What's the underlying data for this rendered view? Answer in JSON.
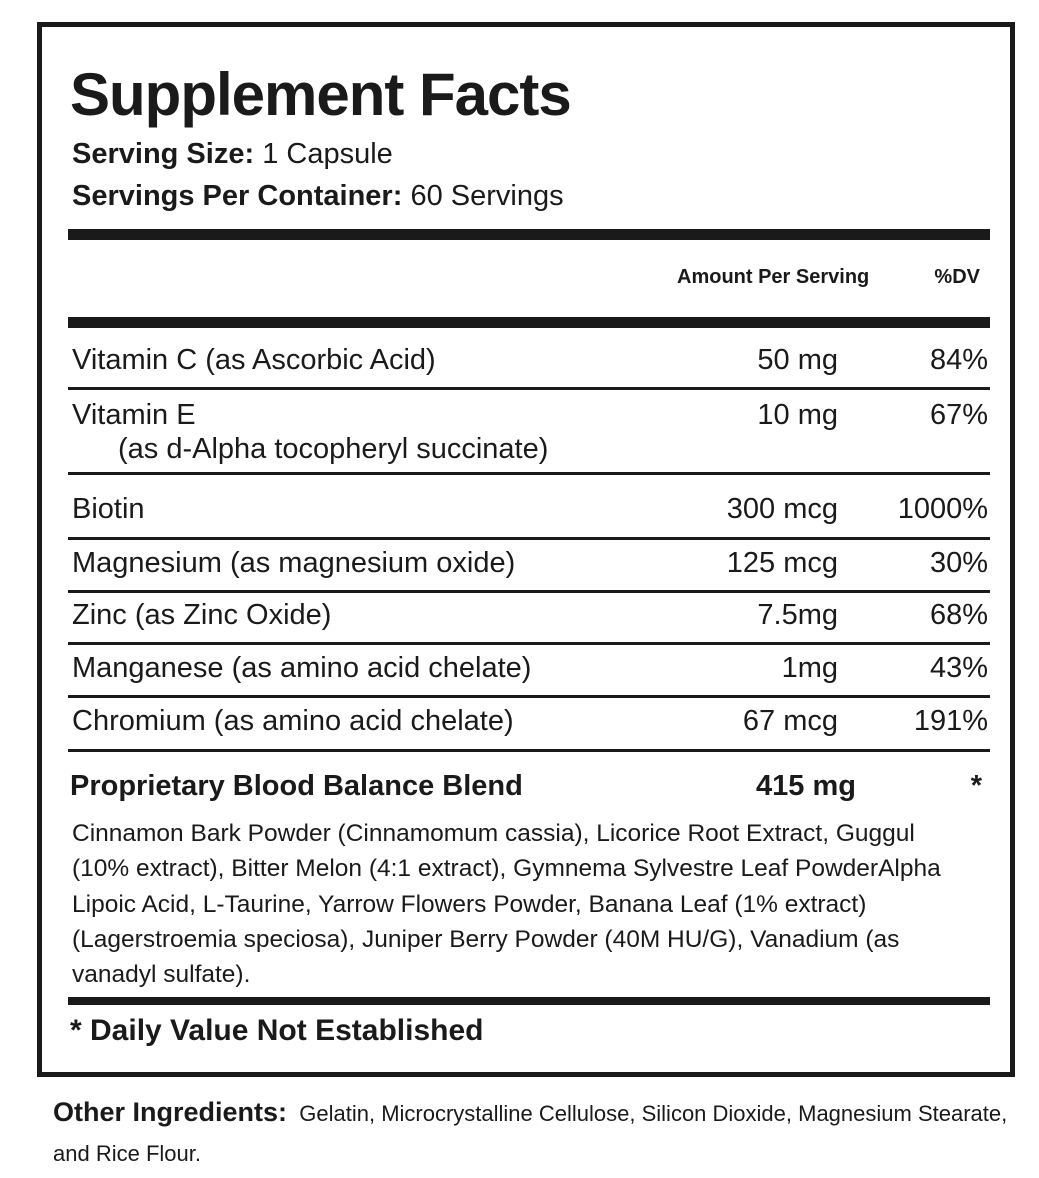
{
  "title": "Supplement Facts",
  "serving_size": {
    "label": "Serving Size:",
    "value": "1 Capsule"
  },
  "servings_per_container": {
    "label": "Servings Per Container:",
    "value": "60 Servings"
  },
  "columns": {
    "amount": "Amount Per Serving",
    "dv": "%DV"
  },
  "rows": [
    {
      "name": "Vitamin C (as Ascorbic Acid)",
      "amount": "50 mg",
      "dv": "84%"
    },
    {
      "name": "Vitamin E",
      "sub": "(as d-Alpha tocopheryl succinate)",
      "amount": "10 mg",
      "dv": "67%"
    },
    {
      "name": "Biotin",
      "amount": "300 mcg",
      "dv": "1000%"
    },
    {
      "name": "Magnesium (as magnesium oxide)",
      "amount": "125 mcg",
      "dv": "30%"
    },
    {
      "name": "Zinc (as Zinc Oxide)",
      "amount": "7.5mg",
      "dv": "68%"
    },
    {
      "name": "Manganese (as amino acid chelate)",
      "amount": "1mg",
      "dv": "43%"
    },
    {
      "name": "Chromium (as amino acid chelate)",
      "amount": "67 mcg",
      "dv": "191%"
    }
  ],
  "blend": {
    "name": "Proprietary Blood Balance Blend",
    "amount": "415 mg",
    "dv": "*",
    "ingredients": "Cinnamon Bark Powder (Cinnamomum cassia), Licorice Root Extract, Guggul (10% extract), Bitter Melon (4:1 extract), Gymnema Sylvestre Leaf PowderAlpha Lipoic Acid, L-Taurine, Yarrow Flowers Powder, Banana Leaf (1% extract) (Lagerstroemia speciosa), Juniper Berry Powder (40M HU/G), Vanadium (as vanadyl sulfate)."
  },
  "footnote": "* Daily Value Not Established",
  "other_ingredients": {
    "label": "Other Ingredients:",
    "value": "Gelatin, Microcrystalline Cellulose, Silicon Dioxide, Magnesium Stearate, and Rice Flour."
  }
}
